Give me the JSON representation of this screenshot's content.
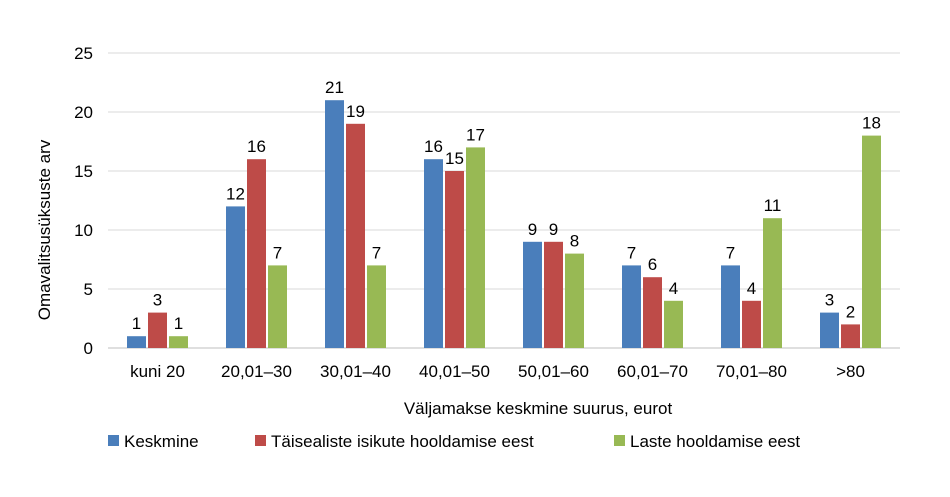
{
  "chart_data": {
    "type": "bar",
    "title": "",
    "xlabel": "Väljamakse keskmine suurus, eurot",
    "ylabel": "Omavalitsusüksuste arv",
    "ylim": [
      0,
      25
    ],
    "yticks": [
      "0",
      "5",
      "10",
      "15",
      "20",
      "25"
    ],
    "grid": true,
    "legend_position": "bottom",
    "categories": [
      "kuni 20",
      "20,01–30",
      "30,01–40",
      "40,01–50",
      "50,01–60",
      "60,01–70",
      "70,01–80",
      ">80"
    ],
    "series": [
      {
        "name": "Keskmine",
        "color": "#4a7ebb",
        "values": [
          1,
          12,
          21,
          16,
          9,
          7,
          7,
          3
        ]
      },
      {
        "name": "Täisealiste isikute hooldamise eest",
        "color": "#be4b48",
        "values": [
          3,
          16,
          19,
          15,
          9,
          6,
          4,
          2
        ]
      },
      {
        "name": "Laste hooldamise eest",
        "color": "#98b954",
        "values": [
          1,
          7,
          7,
          17,
          8,
          4,
          11,
          18
        ]
      }
    ]
  }
}
